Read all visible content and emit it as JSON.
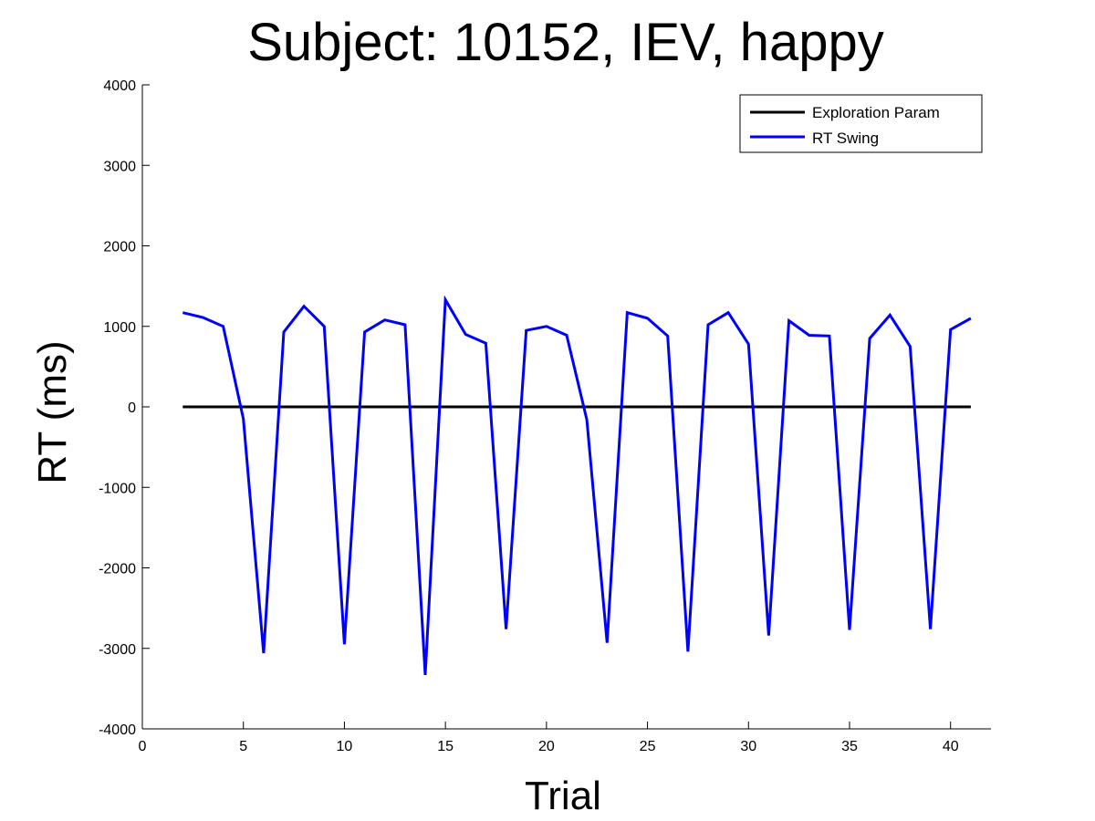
{
  "chart_data": {
    "type": "line",
    "title": "Subject: 10152, IEV, happy",
    "xlabel": "Trial",
    "ylabel": "RT (ms)",
    "xlim": [
      0,
      42
    ],
    "ylim": [
      -4000,
      4000
    ],
    "xticks": [
      0,
      5,
      10,
      15,
      20,
      25,
      30,
      35,
      40
    ],
    "yticks": [
      -4000,
      -3000,
      -2000,
      -1000,
      0,
      1000,
      2000,
      3000,
      4000
    ],
    "grid": false,
    "legend_position": "top-right",
    "x": [
      2,
      3,
      4,
      5,
      6,
      7,
      8,
      9,
      10,
      11,
      12,
      13,
      14,
      15,
      16,
      17,
      18,
      19,
      20,
      21,
      22,
      23,
      24,
      25,
      26,
      27,
      28,
      29,
      30,
      31,
      32,
      33,
      34,
      35,
      36,
      37,
      38,
      39,
      40,
      41
    ],
    "series": [
      {
        "name": "Exploration Param",
        "color": "#000000",
        "values": [
          0,
          0,
          0,
          0,
          0,
          0,
          0,
          0,
          0,
          0,
          0,
          0,
          0,
          0,
          0,
          0,
          0,
          0,
          0,
          0,
          0,
          0,
          0,
          0,
          0,
          0,
          0,
          0,
          0,
          0,
          0,
          0,
          0,
          0,
          0,
          0,
          0,
          0,
          0,
          0
        ]
      },
      {
        "name": "RT Swing",
        "color": "#0000ff",
        "values": [
          1170,
          1110,
          1000,
          -150,
          -3060,
          930,
          1250,
          1000,
          -2950,
          930,
          1080,
          1020,
          -3330,
          1330,
          900,
          790,
          -2760,
          950,
          1000,
          890,
          -160,
          -2930,
          1170,
          1100,
          880,
          -3040,
          1020,
          1170,
          780,
          -2840,
          1070,
          890,
          880,
          -2770,
          850,
          1140,
          750,
          -2760,
          960,
          1100
        ]
      }
    ]
  }
}
